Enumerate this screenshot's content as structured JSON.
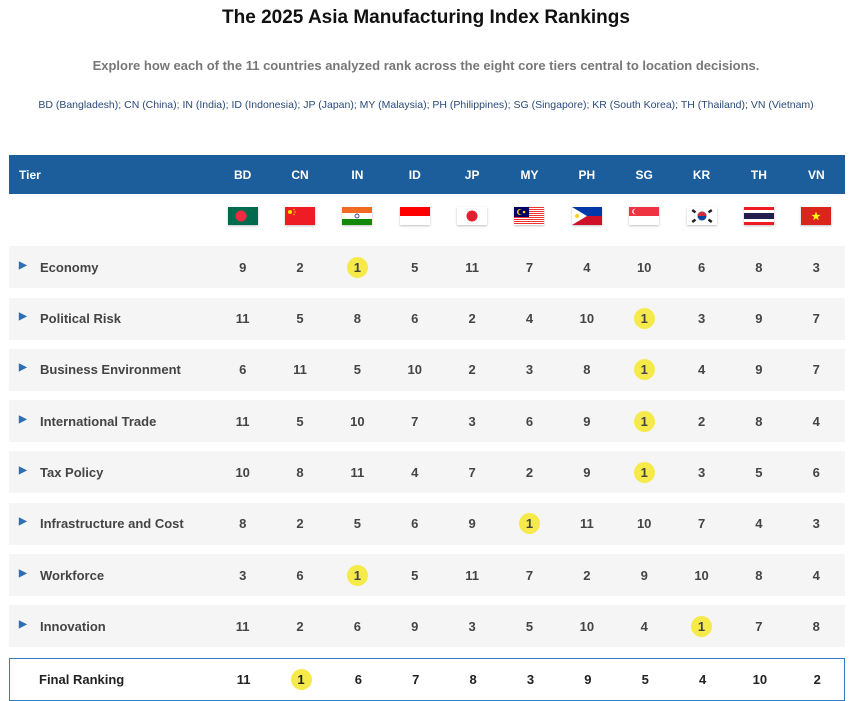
{
  "title": "The 2025 Asia Manufacturing Index Rankings",
  "subtitle": "Explore how each of the 11 countries analyzed rank across the eight core tiers central to location decisions.",
  "legend": "BD (Bangladesh); CN (China); IN (India); ID (Indonesia); JP (Japan); MY (Malaysia); PH (Philippines); SG (Singapore); KR (South Korea); TH (Thailand); VN (Vietnam)",
  "header": {
    "tier": "Tier",
    "countries": [
      "BD",
      "CN",
      "IN",
      "ID",
      "JP",
      "MY",
      "PH",
      "SG",
      "KR",
      "TH",
      "VN"
    ]
  },
  "highlight_color": "#f5ea4a",
  "header_color": "#1c5d9b",
  "rows": [
    {
      "label": "Economy",
      "values": [
        9,
        2,
        1,
        5,
        11,
        7,
        4,
        10,
        6,
        8,
        3
      ]
    },
    {
      "label": "Political Risk",
      "values": [
        11,
        5,
        8,
        6,
        2,
        4,
        10,
        1,
        3,
        9,
        7
      ]
    },
    {
      "label": "Business Environment",
      "values": [
        6,
        11,
        5,
        10,
        2,
        3,
        8,
        1,
        4,
        9,
        7
      ]
    },
    {
      "label": "International Trade",
      "values": [
        11,
        5,
        10,
        7,
        3,
        6,
        9,
        1,
        2,
        8,
        4
      ]
    },
    {
      "label": "Tax Policy",
      "values": [
        10,
        8,
        11,
        4,
        7,
        2,
        9,
        1,
        3,
        5,
        6
      ]
    },
    {
      "label": "Infrastructure and Cost",
      "values": [
        8,
        2,
        5,
        6,
        9,
        1,
        11,
        10,
        7,
        4,
        3
      ]
    },
    {
      "label": "Workforce",
      "values": [
        3,
        6,
        1,
        5,
        11,
        7,
        2,
        9,
        10,
        8,
        4
      ]
    },
    {
      "label": "Innovation",
      "values": [
        11,
        2,
        6,
        9,
        3,
        5,
        10,
        4,
        1,
        7,
        8
      ]
    }
  ],
  "final": {
    "label": "Final Ranking",
    "values": [
      11,
      1,
      6,
      7,
      8,
      3,
      9,
      5,
      4,
      10,
      2
    ]
  }
}
